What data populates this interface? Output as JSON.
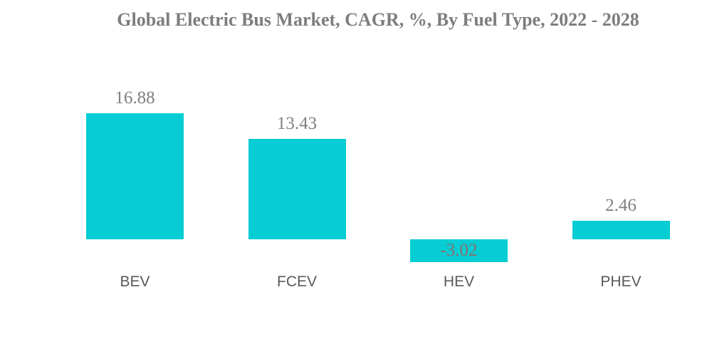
{
  "chart_data": {
    "type": "bar",
    "title": "Global Electric Bus Market, CAGR, %, By Fuel Type, 2022 - 2028",
    "categories": [
      "BEV",
      "FCEV",
      "HEV",
      "PHEV"
    ],
    "values": [
      16.88,
      13.43,
      -3.02,
      2.46
    ],
    "value_labels": [
      "16.88",
      "13.43",
      "-3.02",
      "2.46"
    ],
    "xlabel": "",
    "ylabel": "",
    "ylim": [
      -5,
      20
    ],
    "baseline": 0,
    "grid": false,
    "legend": false,
    "axes_visible": false,
    "colors": {
      "bar": "#05cdd3",
      "title_text": "#7d7d7d",
      "value_label_text": "#7f7f7f",
      "negative_value_label_text": "#8a7070",
      "category_label_text": "#595959",
      "background": "#ffffff"
    }
  }
}
